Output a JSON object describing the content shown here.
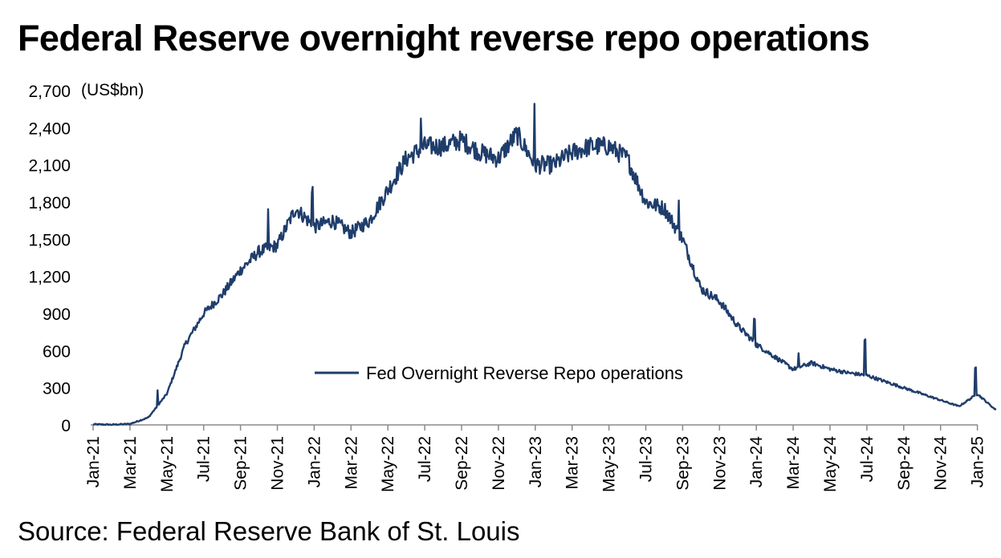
{
  "title": "Federal Reserve overnight reverse repo operations",
  "source": "Source: Federal Reserve Bank of St. Louis",
  "chart_data": {
    "type": "line",
    "ylabel": "(US$bn)",
    "ylim": [
      0,
      2700
    ],
    "yticks": [
      "2,700",
      "2,400",
      "2,100",
      "1,800",
      "1,500",
      "1,200",
      "900",
      "600",
      "300",
      "0"
    ],
    "ytick_values": [
      2700,
      2400,
      2100,
      1800,
      1500,
      1200,
      900,
      600,
      300,
      0
    ],
    "xticks": [
      "Jan-21",
      "Mar-21",
      "May-21",
      "Jul-21",
      "Sep-21",
      "Nov-21",
      "Jan-22",
      "Mar-22",
      "May-22",
      "Jul-22",
      "Sep-22",
      "Nov-22",
      "Jan-23",
      "Mar-23",
      "May-23",
      "Jul-23",
      "Sep-23",
      "Nov-23",
      "Jan-24",
      "Mar-24",
      "May-24",
      "Jul-24",
      "Sep-24",
      "Nov-24",
      "Jan-25"
    ],
    "grid": false,
    "legend_position": "center",
    "line_color": "#1f3d6b",
    "series": [
      {
        "name": "Fed Overnight Reverse Repo operations",
        "x": [
          "2021-01",
          "2021-02",
          "2021-03",
          "2021-04",
          "2021-05",
          "2021-06",
          "2021-07",
          "2021-08",
          "2021-09",
          "2021-10",
          "2021-11",
          "2021-12",
          "2022-01",
          "2022-02",
          "2022-03",
          "2022-04",
          "2022-05",
          "2022-06",
          "2022-07",
          "2022-08",
          "2022-09",
          "2022-10",
          "2022-11",
          "2022-12",
          "2023-01",
          "2023-02",
          "2023-03",
          "2023-04",
          "2023-05",
          "2023-06",
          "2023-07",
          "2023-08",
          "2023-09",
          "2023-10",
          "2023-11",
          "2023-12",
          "2024-01",
          "2024-02",
          "2024-03",
          "2024-04",
          "2024-05",
          "2024-06",
          "2024-07",
          "2024-08",
          "2024-09",
          "2024-10",
          "2024-11",
          "2024-12",
          "2025-01",
          "2025-02"
        ],
        "values": [
          5,
          2,
          8,
          60,
          250,
          650,
          900,
          1050,
          1250,
          1400,
          1450,
          1750,
          1600,
          1650,
          1550,
          1650,
          1900,
          2150,
          2250,
          2250,
          2300,
          2200,
          2150,
          2350,
          2100,
          2100,
          2200,
          2250,
          2250,
          2150,
          1800,
          1750,
          1500,
          1100,
          1000,
          800,
          650,
          550,
          450,
          500,
          450,
          420,
          400,
          350,
          300,
          250,
          200,
          150,
          250,
          120
        ]
      }
    ]
  }
}
